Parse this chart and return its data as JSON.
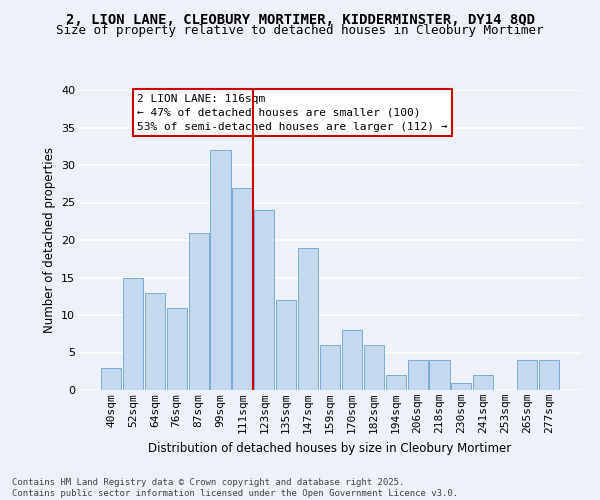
{
  "title": "2, LION LANE, CLEOBURY MORTIMER, KIDDERMINSTER, DY14 8QD",
  "subtitle": "Size of property relative to detached houses in Cleobury Mortimer",
  "xlabel": "Distribution of detached houses by size in Cleobury Mortimer",
  "ylabel": "Number of detached properties",
  "categories": [
    "40sqm",
    "52sqm",
    "64sqm",
    "76sqm",
    "87sqm",
    "99sqm",
    "111sqm",
    "123sqm",
    "135sqm",
    "147sqm",
    "159sqm",
    "170sqm",
    "182sqm",
    "194sqm",
    "206sqm",
    "218sqm",
    "230sqm",
    "241sqm",
    "253sqm",
    "265sqm",
    "277sqm"
  ],
  "values": [
    3,
    15,
    13,
    11,
    21,
    32,
    27,
    24,
    12,
    19,
    6,
    8,
    6,
    2,
    4,
    4,
    1,
    2,
    0,
    4,
    4
  ],
  "bar_color": "#c5d8f0",
  "bar_edge_color": "#7aadd4",
  "highlight_line_idx": 6,
  "highlight_line_color": "#cc0000",
  "annotation_text": "2 LION LANE: 116sqm\n← 47% of detached houses are smaller (100)\n53% of semi-detached houses are larger (112) →",
  "annotation_box_color": "#ffffff",
  "annotation_box_edge": "#cc0000",
  "ylim": [
    0,
    40
  ],
  "yticks": [
    0,
    5,
    10,
    15,
    20,
    25,
    30,
    35,
    40
  ],
  "bg_color": "#eef2f8",
  "grid_color": "#ffffff",
  "footnote": "Contains HM Land Registry data © Crown copyright and database right 2025.\nContains public sector information licensed under the Open Government Licence v3.0.",
  "title_fontsize": 10,
  "subtitle_fontsize": 9,
  "annotation_fontsize": 8,
  "axis_fontsize": 8,
  "xlabel_fontsize": 8.5,
  "ylabel_fontsize": 8.5
}
